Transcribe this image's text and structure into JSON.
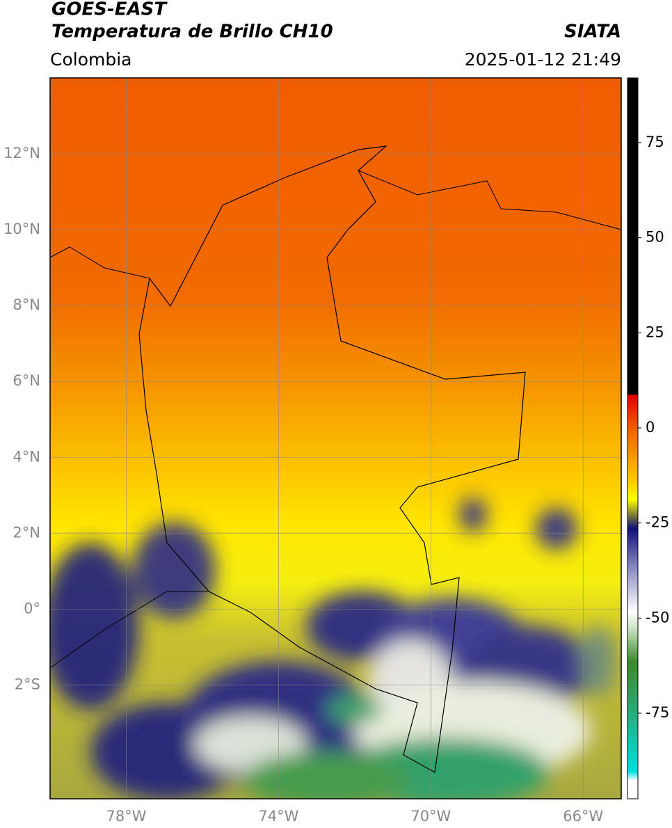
{
  "chart_data": {
    "type": "map",
    "title": "GOES-EAST",
    "subtitle": "Temperatura de Brillo CH10",
    "source": "SIATA",
    "region": "Colombia",
    "timestamp": "2025-01-12 21:49",
    "xlim": [
      -80,
      -65
    ],
    "ylim": [
      -5,
      14
    ],
    "xticks": [
      {
        "value": -78,
        "label": "78°W"
      },
      {
        "value": -74,
        "label": "74°W"
      },
      {
        "value": -70,
        "label": "70°W"
      },
      {
        "value": -66,
        "label": "66°W"
      }
    ],
    "yticks": [
      {
        "value": 12,
        "label": "12°N"
      },
      {
        "value": 10,
        "label": "10°N"
      },
      {
        "value": 8,
        "label": "8°N"
      },
      {
        "value": 6,
        "label": "6°N"
      },
      {
        "value": 4,
        "label": "4°N"
      },
      {
        "value": 2,
        "label": "2°N"
      },
      {
        "value": 0,
        "label": "0°"
      },
      {
        "value": -2,
        "label": "2°S"
      }
    ],
    "grid": true,
    "colorbar": {
      "lim": [
        -97.5,
        92
      ],
      "ticks": [
        75,
        50,
        25,
        0,
        -25,
        -50,
        -75
      ]
    }
  }
}
